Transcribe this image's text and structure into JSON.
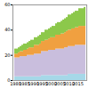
{
  "chart_data": {
    "type": "bar",
    "stacked": true,
    "grid": false,
    "categories": [
      "1980",
      null,
      null,
      null,
      null,
      "1985",
      null,
      null,
      null,
      null,
      "1990",
      null,
      null,
      null,
      null,
      "1995",
      null,
      null,
      null,
      null,
      "2000",
      null,
      null,
      null,
      null,
      "2005",
      null,
      null,
      null,
      null,
      "2010",
      null,
      null,
      null,
      null,
      "2015",
      null,
      null,
      null,
      null
    ],
    "ylim": [
      0,
      60
    ],
    "yticks": [
      0,
      20,
      40,
      60
    ],
    "series": [
      {
        "color": "#a6d8e8",
        "values": [
          3,
          3,
          3,
          3,
          3,
          3,
          3,
          3,
          3,
          3,
          3,
          3,
          3,
          3,
          3,
          4,
          4,
          4,
          4,
          4,
          4,
          4,
          4,
          4,
          4,
          4,
          4,
          4,
          4,
          4,
          5,
          5,
          5,
          5,
          5,
          5,
          5,
          5,
          5,
          5
        ]
      },
      {
        "color": "#c9bedd",
        "values": [
          15,
          15,
          15,
          16,
          16,
          16,
          16,
          17,
          17,
          17,
          17,
          18,
          18,
          18,
          18,
          19,
          19,
          19,
          19,
          20,
          20,
          20,
          20,
          21,
          21,
          21,
          21,
          21,
          22,
          22,
          22,
          22,
          22,
          22,
          23,
          23,
          23,
          23,
          23,
          23
        ]
      },
      {
        "color": "#f0a040",
        "values": [
          3,
          3,
          4,
          4,
          4,
          5,
          5,
          5,
          6,
          6,
          6,
          7,
          7,
          7,
          8,
          8,
          8,
          9,
          9,
          9,
          10,
          10,
          10,
          11,
          11,
          11,
          12,
          12,
          12,
          13,
          13,
          13,
          14,
          14,
          14,
          14,
          15,
          15,
          15,
          15
        ]
      },
      {
        "color": "#8cc84b",
        "values": [
          4,
          4,
          4,
          4,
          5,
          5,
          5,
          5,
          5,
          6,
          6,
          6,
          6,
          7,
          7,
          7,
          7,
          8,
          8,
          8,
          8,
          9,
          9,
          9,
          10,
          10,
          10,
          11,
          11,
          11,
          12,
          12,
          12,
          13,
          13,
          13,
          14,
          14,
          14,
          15
        ]
      }
    ]
  }
}
